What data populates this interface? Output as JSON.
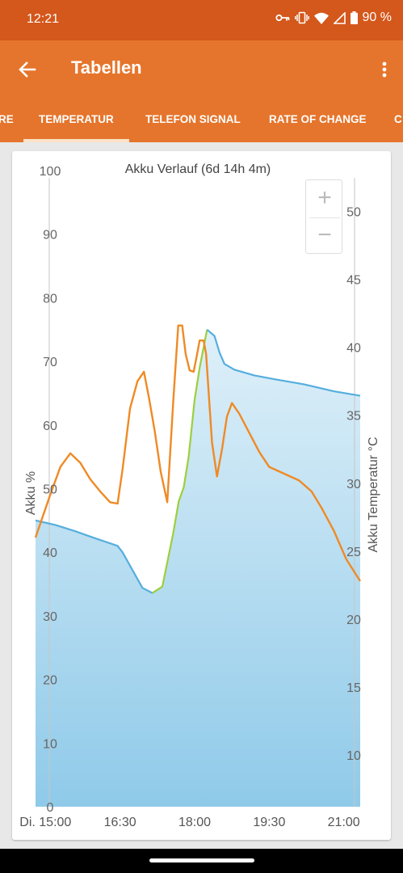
{
  "status_bar": {
    "time": "12:21",
    "battery": "90 %"
  },
  "app_bar": {
    "title": "Tabellen"
  },
  "tabs": [
    {
      "label": "RE"
    },
    {
      "label": "TEMPERATUR"
    },
    {
      "label": "TELEFON SIGNAL"
    },
    {
      "label": "RATE OF CHANGE"
    },
    {
      "label": "C"
    }
  ],
  "zoom": {
    "plus": "+",
    "minus": "−"
  },
  "colors": {
    "accent": "#e5752c",
    "statusbar": "#d4571b",
    "battery": "#55aede",
    "charging": "#9ccf3c",
    "temperature": "#ef8a25"
  },
  "chart_data": {
    "type": "area",
    "title": "Akku Verlauf (6d 14h 4m)",
    "ylabel": "Akku %",
    "y2label": "Akku Temperatur °C",
    "ylim": [
      0,
      100
    ],
    "y2lim": [
      6.2,
      53
    ],
    "yticks": [
      0,
      10,
      20,
      30,
      40,
      50,
      60,
      70,
      80,
      90,
      100
    ],
    "y2ticks": [
      10,
      15,
      20,
      25,
      30,
      35,
      40,
      45,
      50
    ],
    "xlim": [
      14.8,
      21.33
    ],
    "xticks": [
      {
        "value": 15.0,
        "label": "Di. 15:00"
      },
      {
        "value": 16.5,
        "label": "16:30"
      },
      {
        "value": 18.0,
        "label": "18:00"
      },
      {
        "value": 19.5,
        "label": "19:30"
      },
      {
        "value": 21.0,
        "label": "21:00"
      }
    ],
    "series": [
      {
        "name": "Akku %",
        "axis": "left",
        "points": [
          [
            14.8,
            45
          ],
          [
            15.2,
            44.3
          ],
          [
            15.6,
            43.3
          ],
          [
            16.0,
            42.2
          ],
          [
            16.45,
            41
          ],
          [
            16.55,
            40
          ],
          [
            16.8,
            36.5
          ],
          [
            16.95,
            34.4
          ],
          [
            17.15,
            33.6
          ],
          [
            17.35,
            34.6
          ],
          [
            17.57,
            43
          ],
          [
            17.68,
            48
          ],
          [
            17.78,
            50.2
          ],
          [
            17.88,
            55
          ],
          [
            18.0,
            64
          ],
          [
            18.1,
            69
          ],
          [
            18.2,
            73
          ],
          [
            18.25,
            75
          ],
          [
            18.4,
            74
          ],
          [
            18.5,
            71.4
          ],
          [
            18.6,
            69.6
          ],
          [
            18.8,
            68.7
          ],
          [
            19.2,
            67.8
          ],
          [
            19.6,
            67.2
          ],
          [
            20.2,
            66.4
          ],
          [
            20.8,
            65.3
          ],
          [
            21.33,
            64.6
          ]
        ],
        "charging_range": [
          17.35,
          18.25
        ]
      },
      {
        "name": "Akku Temperatur °C",
        "axis": "right",
        "points": [
          [
            14.8,
            26
          ],
          [
            15.1,
            29.2
          ],
          [
            15.3,
            31.2
          ],
          [
            15.5,
            32.2
          ],
          [
            15.7,
            31.5
          ],
          [
            15.9,
            30.3
          ],
          [
            16.1,
            29.4
          ],
          [
            16.3,
            28.6
          ],
          [
            16.45,
            28.5
          ],
          [
            16.55,
            31
          ],
          [
            16.7,
            35.5
          ],
          [
            16.85,
            37.5
          ],
          [
            16.98,
            38.2
          ],
          [
            17.08,
            36.3
          ],
          [
            17.2,
            33.8
          ],
          [
            17.32,
            30.8
          ],
          [
            17.45,
            28.6
          ],
          [
            17.57,
            36
          ],
          [
            17.67,
            41.6
          ],
          [
            17.75,
            41.6
          ],
          [
            17.82,
            39.5
          ],
          [
            17.9,
            38.3
          ],
          [
            17.98,
            38.2
          ],
          [
            18.05,
            39.5
          ],
          [
            18.1,
            40.5
          ],
          [
            18.18,
            40.5
          ],
          [
            18.23,
            39.5
          ],
          [
            18.35,
            33
          ],
          [
            18.45,
            30.5
          ],
          [
            18.55,
            32.5
          ],
          [
            18.65,
            34.9
          ],
          [
            18.75,
            35.9
          ],
          [
            18.9,
            35.1
          ],
          [
            19.1,
            33.7
          ],
          [
            19.3,
            32.3
          ],
          [
            19.5,
            31.2
          ],
          [
            19.8,
            30.7
          ],
          [
            20.1,
            30.2
          ],
          [
            20.35,
            29.4
          ],
          [
            20.55,
            28.2
          ],
          [
            20.8,
            26.5
          ],
          [
            21.05,
            24.4
          ],
          [
            21.33,
            22.8
          ]
        ]
      }
    ]
  }
}
